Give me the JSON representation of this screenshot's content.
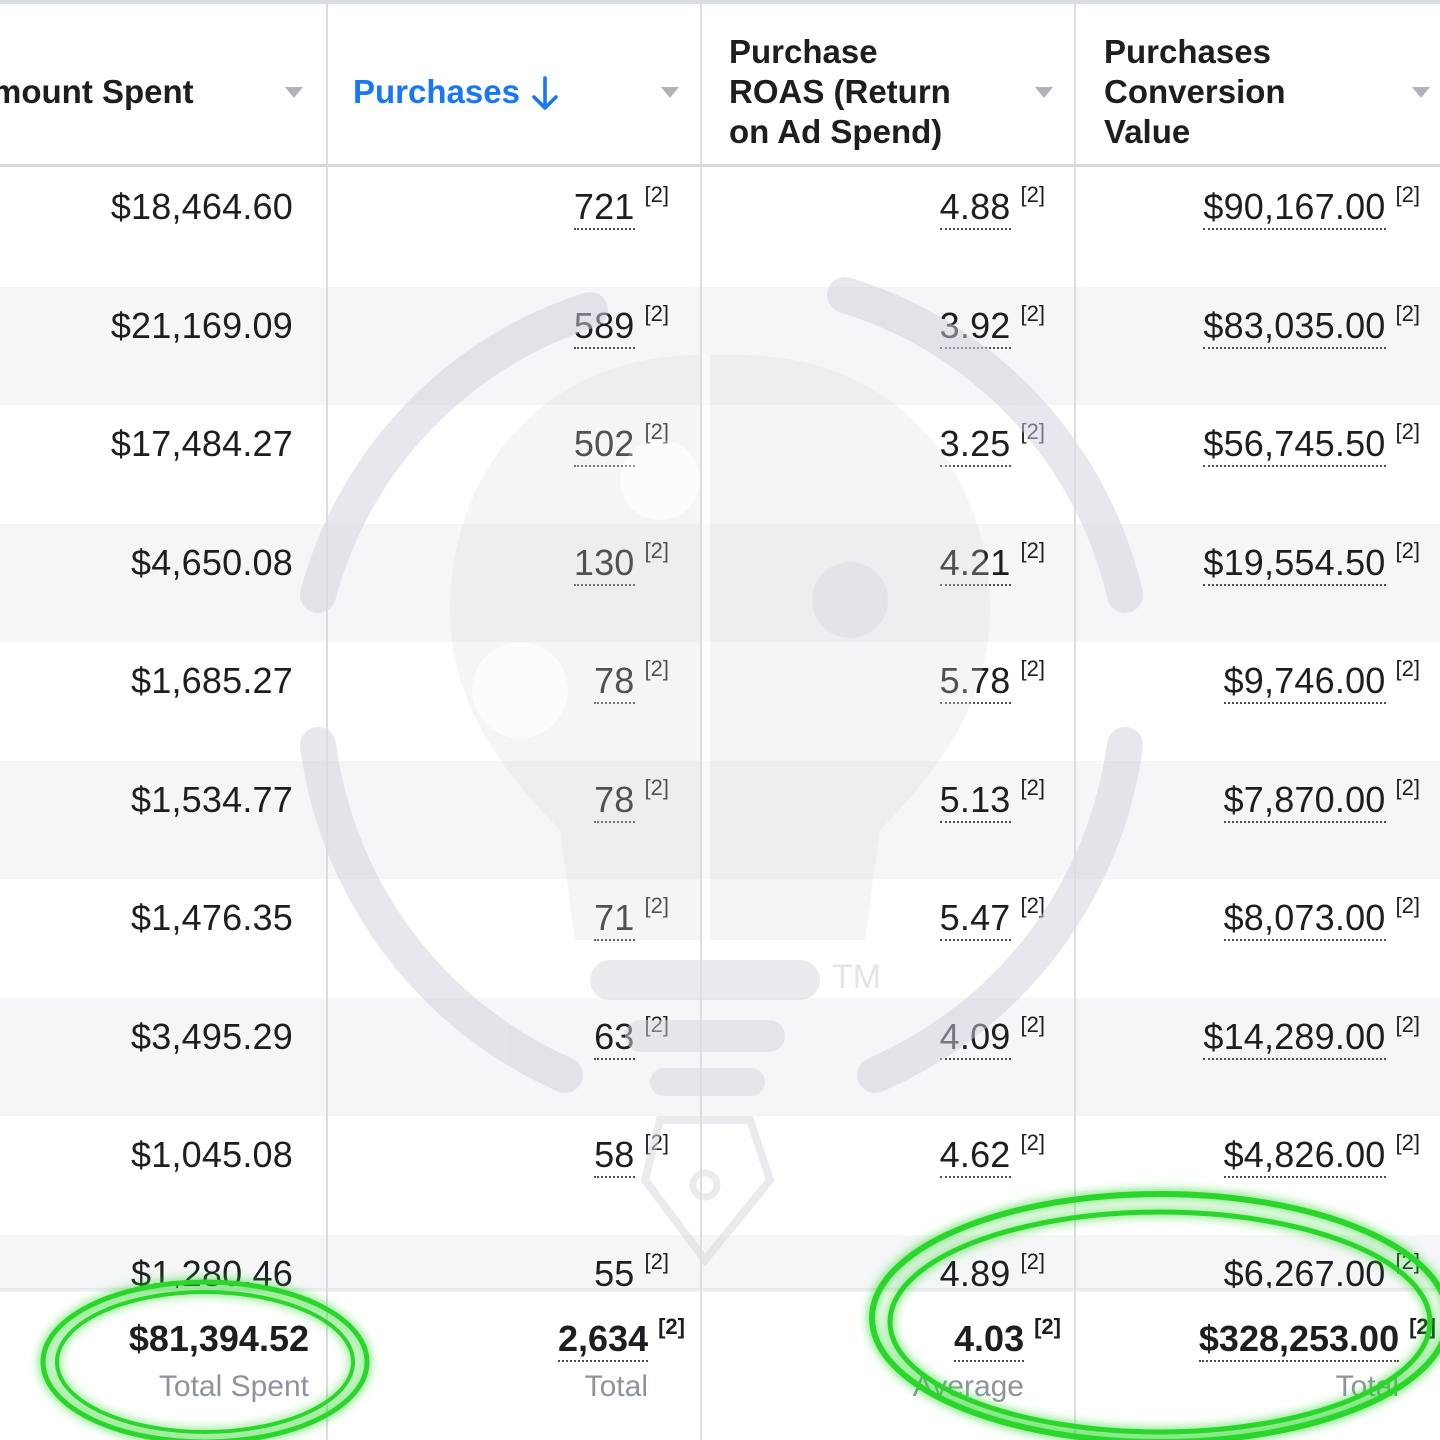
{
  "columns": [
    {
      "label_lines": [
        "mount Spent"
      ],
      "sorted": false
    },
    {
      "label_lines": [
        "Purchases"
      ],
      "sorted": true,
      "sort_direction": "descending"
    },
    {
      "label_lines": [
        "Purchase",
        "ROAS (Return",
        "on Ad Spend)"
      ],
      "sorted": false
    },
    {
      "label_lines": [
        "Purchases",
        "Conversion",
        "Value"
      ],
      "sorted": false
    }
  ],
  "note_marker": "[2]",
  "rows": [
    {
      "amount_spent": "$18,464.60",
      "purchases": "721",
      "roas": "4.88",
      "conversion_value": "$90,167.00"
    },
    {
      "amount_spent": "$21,169.09",
      "purchases": "589",
      "roas": "3.92",
      "conversion_value": "$83,035.00"
    },
    {
      "amount_spent": "$17,484.27",
      "purchases": "502",
      "roas": "3.25",
      "conversion_value": "$56,745.50"
    },
    {
      "amount_spent": "$4,650.08",
      "purchases": "130",
      "roas": "4.21",
      "conversion_value": "$19,554.50"
    },
    {
      "amount_spent": "$1,685.27",
      "purchases": "78",
      "roas": "5.78",
      "conversion_value": "$9,746.00"
    },
    {
      "amount_spent": "$1,534.77",
      "purchases": "78",
      "roas": "5.13",
      "conversion_value": "$7,870.00"
    },
    {
      "amount_spent": "$1,476.35",
      "purchases": "71",
      "roas": "5.47",
      "conversion_value": "$8,073.00"
    },
    {
      "amount_spent": "$3,495.29",
      "purchases": "63",
      "roas": "4.09",
      "conversion_value": "$14,289.00"
    },
    {
      "amount_spent": "$1,045.08",
      "purchases": "58",
      "roas": "4.62",
      "conversion_value": "$4,826.00"
    },
    {
      "amount_spent": "$1,280.46",
      "purchases": "55",
      "roas": "4.89",
      "conversion_value": "$6,267.00"
    }
  ],
  "footer": {
    "amount_spent": {
      "value": "$81,394.52",
      "label": "Total Spent"
    },
    "purchases": {
      "value": "2,634",
      "label": "Total"
    },
    "roas": {
      "value": "4.03",
      "label": "Average"
    },
    "conversion_value": {
      "value": "$328,253.00",
      "label": "Total"
    }
  },
  "watermark": {
    "icon": "lightbulb-puzzle-pen-icon",
    "mark": "TM"
  },
  "colors": {
    "sorted_header": "#1877f2",
    "highlight_ring": "#2bd62b",
    "row_alt_bg": "#f5f6f7",
    "footer_label": "#8d949e"
  }
}
